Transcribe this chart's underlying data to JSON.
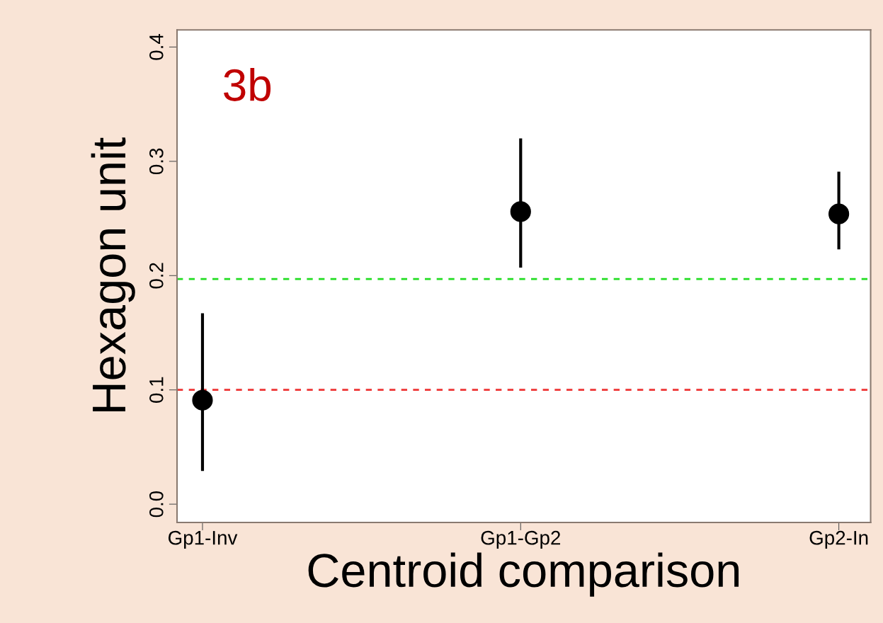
{
  "chart_data": {
    "type": "scatter",
    "xlabel": "Centroid comparison",
    "ylabel": "Hexagon unit",
    "categories": [
      "Gp1-Inv",
      "Gp1-Gp2",
      "Gp2-In"
    ],
    "values": [
      0.091,
      0.256,
      0.254
    ],
    "errors": [
      [
        0.029,
        0.167
      ],
      [
        0.207,
        0.32
      ],
      [
        0.223,
        0.291
      ]
    ],
    "color": "#000000",
    "marker": "circle",
    "ylim": [
      -0.016,
      0.415
    ],
    "yticks": [
      {
        "value": 0,
        "label": "0.0"
      },
      0.1,
      0.2,
      0.3,
      0.4
    ],
    "ref_lines": [
      {
        "axis": "y",
        "value": 0.197,
        "color": "#22dd22",
        "line_style": "dashed"
      },
      {
        "axis": "y",
        "value": 0.1,
        "color": "#ee3333",
        "line_style": "dashed"
      }
    ],
    "annotations": [
      "3b"
    ],
    "grid": false,
    "legend": false
  }
}
